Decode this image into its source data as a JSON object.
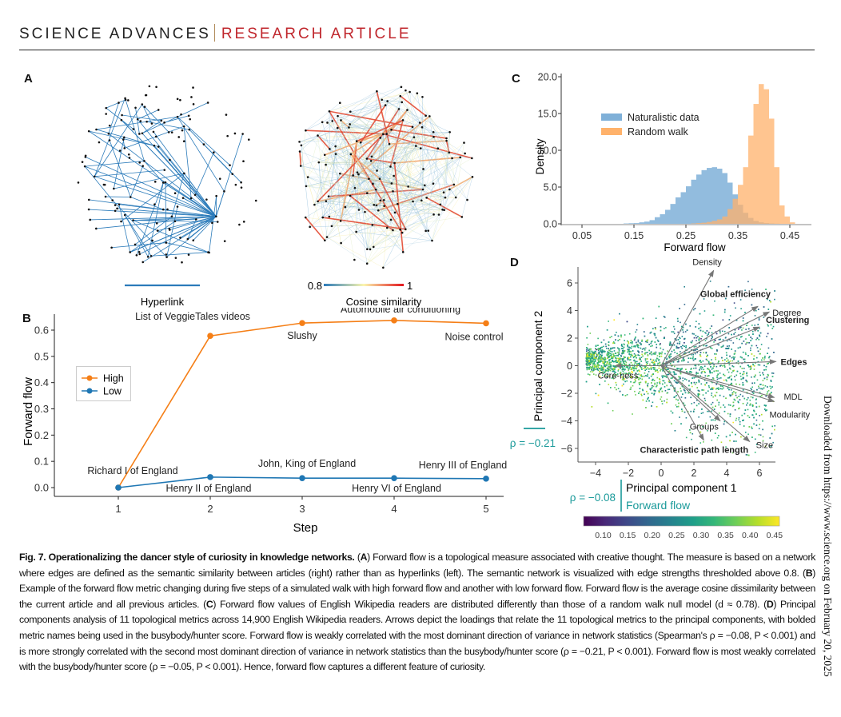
{
  "header": {
    "journal": "SCIENCE ADVANCES",
    "article_type": "RESEARCH ARTICLE",
    "accent_color": "#c0272d"
  },
  "sidebar_text": "Downloaded from https://www.science.org on February 20, 2025",
  "panels": {
    "A": {
      "letter": "A",
      "left_legend": "Hyperlink",
      "right_legend": "Cosine similarity",
      "scale_min": "0.8",
      "scale_max": "1",
      "edge_color": "#2b7bba"
    },
    "C_letter": "C",
    "B_letter": "B",
    "D_letter": "D"
  },
  "chart_data": [
    {
      "id": "B",
      "type": "line",
      "title": "",
      "xlabel": "Step",
      "ylabel": "Forward flow",
      "x": [
        1,
        2,
        3,
        4,
        5
      ],
      "xticks": [
        "1",
        "2",
        "3",
        "4",
        "5"
      ],
      "yticks": [
        "0.0",
        "0.1",
        "0.2",
        "0.3",
        "0.4",
        "0.5",
        "0.6"
      ],
      "ylim": [
        -0.03,
        0.67
      ],
      "legend": "center-left",
      "series": [
        {
          "name": "High",
          "color": "#f57f17",
          "values": [
            0.0,
            0.578,
            0.627,
            0.637,
            0.626
          ],
          "labels": [
            "",
            "List of VeggieTales videos",
            "Slushy",
            "Automobile air conditioning",
            "Noise control"
          ]
        },
        {
          "name": "Low",
          "color": "#1f77b4",
          "values": [
            0.0,
            0.04,
            0.036,
            0.036,
            0.034
          ],
          "labels": [
            "Richard I of England",
            "Henry II of England",
            "John, King of England",
            "Henry VI of England",
            "Henry III of England"
          ]
        }
      ]
    },
    {
      "id": "C",
      "type": "bar",
      "title": "",
      "xlabel": "Forward flow",
      "ylabel": "Density",
      "xticks": [
        "0.05",
        "0.15",
        "0.25",
        "0.35",
        "0.45"
      ],
      "yticks": [
        "0.0",
        "5.0",
        "10.0",
        "15.0",
        "20.0"
      ],
      "xlim": [
        0.03,
        0.49
      ],
      "ylim": [
        0,
        20
      ],
      "legend": "upper-left",
      "bin_width": 0.01,
      "series": [
        {
          "name": "Naturalistic data",
          "color": "#7fb0d8",
          "bin_starts": [
            0.13,
            0.14,
            0.15,
            0.16,
            0.17,
            0.18,
            0.19,
            0.2,
            0.21,
            0.22,
            0.23,
            0.24,
            0.25,
            0.26,
            0.27,
            0.28,
            0.29,
            0.3,
            0.31,
            0.32,
            0.33,
            0.34,
            0.35,
            0.36,
            0.37,
            0.38,
            0.39,
            0.4,
            0.41,
            0.42
          ],
          "values": [
            0.05,
            0.08,
            0.1,
            0.2,
            0.3,
            0.5,
            0.9,
            1.3,
            1.9,
            2.7,
            3.6,
            4.3,
            5.1,
            6.0,
            6.7,
            7.3,
            7.6,
            7.7,
            7.5,
            6.9,
            5.6,
            4.0,
            2.6,
            1.5,
            0.8,
            0.4,
            0.2,
            0.1,
            0.05,
            0.02
          ]
        },
        {
          "name": "Random walk",
          "color": "#ffb26b",
          "bin_starts": [
            0.26,
            0.27,
            0.28,
            0.29,
            0.3,
            0.31,
            0.32,
            0.33,
            0.34,
            0.35,
            0.36,
            0.37,
            0.38,
            0.39,
            0.4,
            0.41,
            0.42,
            0.43,
            0.44,
            0.45
          ],
          "values": [
            0.05,
            0.1,
            0.15,
            0.25,
            0.4,
            0.6,
            1.0,
            2.0,
            3.4,
            5.3,
            7.7,
            12.0,
            16.3,
            19.0,
            18.3,
            14.3,
            7.7,
            2.5,
            1.0,
            0.2
          ]
        }
      ]
    },
    {
      "id": "D",
      "type": "scatter",
      "title": "",
      "xlabel": "Principal component 1",
      "ylabel": "Principal component 2",
      "xticks": [
        "−4",
        "−2",
        "0",
        "2",
        "4",
        "6"
      ],
      "yticks": [
        "−6",
        "−4",
        "−2",
        "0",
        "2",
        "4",
        "6"
      ],
      "xlim": [
        -5,
        7
      ],
      "ylim": [
        -7,
        7
      ],
      "n_points": 14900,
      "rho_pc1": "ρ = −0.08",
      "rho_pc2": "ρ = −0.21",
      "rho_color": "#1a9a9a",
      "color_label": "Forward flow",
      "colorbar_ticks": [
        "0.10",
        "0.15",
        "0.20",
        "0.25",
        "0.30",
        "0.35",
        "0.40",
        "0.45"
      ],
      "colorbar_range": [
        0.06,
        0.46
      ],
      "loadings": [
        {
          "name": "Density",
          "x": 3.2,
          "y": 6.9,
          "bold": false
        },
        {
          "name": "Global efficiency",
          "x": 5.9,
          "y": 4.3,
          "bold": true
        },
        {
          "name": "Degree",
          "x": 6.6,
          "y": 3.9,
          "bold": false
        },
        {
          "name": "Clustering",
          "x": 6.0,
          "y": 2.8,
          "bold": true
        },
        {
          "name": "Edges",
          "x": 7.0,
          "y": 0.3,
          "bold": true
        },
        {
          "name": "MDL",
          "x": 6.9,
          "y": -2.3,
          "bold": false
        },
        {
          "name": "Modularity",
          "x": 6.9,
          "y": -2.6,
          "bold": false
        },
        {
          "name": "Groups",
          "x": 3.6,
          "y": -4.0,
          "bold": false
        },
        {
          "name": "Size",
          "x": 5.4,
          "y": -5.5,
          "bold": false
        },
        {
          "name": "Characteristic path length",
          "x": 2.6,
          "y": -5.4,
          "bold": true
        },
        {
          "name": "Core-ness",
          "x": -2.8,
          "y": 0.0,
          "bold": false
        }
      ]
    }
  ],
  "caption": {
    "title": "Fig. 7. Operationalizing the dancer style of curiosity in knowledge networks.",
    "a_label": "A",
    "a_text": " Forward flow is a topological measure associated with creative thought. The measure is based on a network where edges are defined as the semantic similarity between articles (right) rather than as hyperlinks (left). The semantic network is visualized with edge strengths thresholded above 0.8. ",
    "b_label": "B",
    "b_text": " Example of the forward flow metric changing during five steps of a simulated walk with high forward flow and another with low forward flow. Forward flow is the average cosine dissimilarity between the current article and all previous articles. ",
    "c_label": "C",
    "c_text": " Forward flow values of English Wikipedia readers are distributed differently than those of a random walk null model (d ≈ 0.78). ",
    "d_label": "D",
    "d_text": " Principal components analysis of 11 topological metrics across 14,900 English Wikipedia readers. Arrows depict the loadings that relate the 11 topological metrics to the principal components, with bolded metric names being used in the busybody/hunter score. Forward flow is weakly correlated with the most dominant direction of variance in network statistics (Spearman's ρ = −0.08, P < 0.001) and is more strongly correlated with the second most dominant direction of variance in network statistics than the busybody/hunter score (ρ = −0.21, P < 0.001). Forward flow is most weakly correlated with the busybody/hunter score (ρ = −0.05, P < 0.001). Hence, forward flow captures a different feature of curiosity."
  }
}
